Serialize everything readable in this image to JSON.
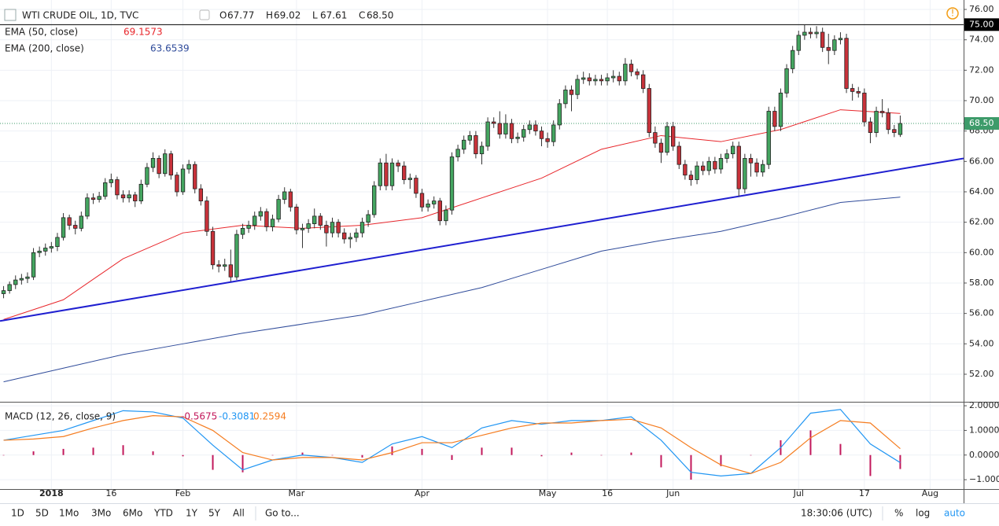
{
  "chart_data": {
    "type": "candlestick",
    "title": "WTI CRUDE OIL, 1D, TVC",
    "ohlc_legend": [
      {
        "key": "O",
        "value": "67.77"
      },
      {
        "key": "H",
        "value": "69.02"
      },
      {
        "key": "L",
        "value": "67.61"
      },
      {
        "key": "C",
        "value": "68.50"
      }
    ],
    "up_color": "#44a560",
    "down_color": "#c8323a",
    "candles": [
      [
        57.3,
        57.8,
        57.0,
        57.5
      ],
      [
        57.5,
        58.1,
        57.3,
        57.9
      ],
      [
        57.9,
        58.5,
        57.6,
        58.2
      ],
      [
        58.2,
        58.6,
        57.9,
        58.3
      ],
      [
        58.3,
        58.7,
        58.0,
        58.4
      ],
      [
        58.4,
        60.3,
        58.2,
        60.0
      ],
      [
        60.0,
        60.4,
        59.7,
        60.1
      ],
      [
        60.1,
        60.6,
        59.8,
        60.3
      ],
      [
        60.3,
        60.7,
        60.0,
        60.4
      ],
      [
        60.4,
        61.3,
        60.1,
        61.0
      ],
      [
        61.0,
        62.6,
        60.8,
        62.3
      ],
      [
        62.3,
        62.5,
        61.5,
        61.8
      ],
      [
        61.8,
        62.1,
        61.2,
        61.6
      ],
      [
        61.6,
        62.7,
        61.4,
        62.4
      ],
      [
        62.4,
        63.9,
        62.2,
        63.6
      ],
      [
        63.6,
        63.9,
        63.2,
        63.5
      ],
      [
        63.5,
        64.0,
        63.3,
        63.7
      ],
      [
        63.7,
        64.9,
        63.5,
        64.6
      ],
      [
        64.6,
        65.2,
        64.3,
        64.8
      ],
      [
        64.8,
        65.0,
        63.5,
        63.8
      ],
      [
        63.8,
        64.1,
        63.3,
        63.6
      ],
      [
        63.6,
        64.1,
        63.3,
        63.8
      ],
      [
        63.8,
        64.0,
        63.0,
        63.4
      ],
      [
        63.4,
        64.8,
        63.2,
        64.5
      ],
      [
        64.5,
        65.9,
        64.3,
        65.6
      ],
      [
        65.6,
        66.6,
        65.3,
        66.2
      ],
      [
        66.2,
        66.4,
        64.9,
        65.2
      ],
      [
        65.2,
        66.8,
        65.0,
        66.5
      ],
      [
        66.5,
        66.7,
        64.8,
        65.1
      ],
      [
        65.1,
        65.3,
        63.7,
        64.0
      ],
      [
        64.0,
        65.8,
        63.8,
        65.5
      ],
      [
        65.5,
        66.1,
        65.2,
        65.8
      ],
      [
        65.8,
        66.0,
        63.9,
        64.2
      ],
      [
        64.2,
        64.5,
        63.1,
        63.4
      ],
      [
        63.4,
        63.7,
        61.1,
        61.4
      ],
      [
        61.4,
        61.7,
        58.9,
        59.2
      ],
      [
        59.2,
        59.5,
        58.7,
        59.1
      ],
      [
        59.1,
        59.6,
        58.8,
        59.2
      ],
      [
        59.2,
        60.2,
        58.1,
        58.4
      ],
      [
        58.4,
        61.5,
        58.2,
        61.2
      ],
      [
        61.2,
        61.9,
        60.9,
        61.6
      ],
      [
        61.6,
        62.1,
        61.3,
        61.8
      ],
      [
        61.8,
        62.7,
        61.5,
        62.4
      ],
      [
        62.4,
        63.0,
        62.1,
        62.7
      ],
      [
        62.7,
        62.9,
        61.4,
        61.7
      ],
      [
        61.7,
        62.5,
        61.4,
        62.2
      ],
      [
        62.2,
        63.8,
        62.0,
        63.5
      ],
      [
        63.5,
        64.3,
        63.2,
        64.0
      ],
      [
        64.0,
        64.2,
        62.7,
        63.0
      ],
      [
        63.0,
        63.2,
        61.2,
        61.5
      ],
      [
        61.5,
        61.9,
        60.3,
        61.6
      ],
      [
        61.6,
        62.2,
        61.3,
        61.9
      ],
      [
        61.9,
        62.9,
        61.6,
        62.4
      ],
      [
        62.4,
        62.6,
        61.5,
        61.8
      ],
      [
        61.8,
        62.1,
        60.4,
        61.3
      ],
      [
        61.3,
        62.3,
        61.0,
        62.0
      ],
      [
        62.0,
        62.2,
        61.0,
        61.3
      ],
      [
        61.3,
        61.6,
        60.6,
        60.9
      ],
      [
        60.9,
        61.3,
        60.3,
        61.0
      ],
      [
        61.0,
        61.6,
        60.7,
        61.3
      ],
      [
        61.3,
        62.3,
        61.0,
        62.0
      ],
      [
        62.0,
        62.8,
        61.7,
        62.5
      ],
      [
        62.5,
        64.7,
        62.3,
        64.4
      ],
      [
        64.4,
        66.2,
        64.1,
        65.9
      ],
      [
        65.9,
        66.5,
        64.1,
        64.4
      ],
      [
        64.4,
        66.2,
        64.1,
        65.9
      ],
      [
        65.9,
        66.1,
        65.3,
        65.7
      ],
      [
        65.7,
        66.0,
        64.5,
        64.8
      ],
      [
        64.8,
        65.2,
        64.2,
        64.9
      ],
      [
        64.9,
        65.1,
        63.6,
        63.9
      ],
      [
        63.9,
        64.2,
        62.7,
        63.0
      ],
      [
        63.0,
        63.5,
        62.7,
        63.2
      ],
      [
        63.2,
        63.7,
        62.9,
        63.4
      ],
      [
        63.4,
        63.6,
        61.8,
        62.1
      ],
      [
        62.1,
        63.1,
        61.8,
        62.8
      ],
      [
        62.8,
        66.6,
        62.5,
        66.3
      ],
      [
        66.3,
        67.1,
        66.0,
        66.8
      ],
      [
        66.8,
        67.7,
        66.5,
        67.4
      ],
      [
        67.4,
        68.0,
        67.1,
        67.7
      ],
      [
        67.7,
        68.0,
        66.2,
        66.5
      ],
      [
        66.5,
        67.3,
        65.8,
        67.0
      ],
      [
        67.0,
        68.9,
        66.7,
        68.6
      ],
      [
        68.6,
        68.9,
        68.2,
        68.5
      ],
      [
        68.5,
        69.3,
        67.5,
        67.8
      ],
      [
        67.8,
        69.1,
        67.5,
        68.5
      ],
      [
        68.5,
        68.8,
        67.2,
        67.5
      ],
      [
        67.5,
        67.9,
        67.2,
        67.6
      ],
      [
        67.6,
        68.4,
        67.3,
        68.1
      ],
      [
        68.1,
        68.7,
        67.8,
        68.4
      ],
      [
        68.4,
        68.7,
        67.7,
        68.0
      ],
      [
        68.0,
        68.3,
        67.0,
        67.5
      ],
      [
        67.5,
        67.9,
        66.9,
        67.3
      ],
      [
        67.3,
        68.7,
        67.0,
        68.4
      ],
      [
        68.4,
        70.1,
        68.1,
        69.8
      ],
      [
        69.8,
        71.0,
        69.5,
        70.7
      ],
      [
        70.7,
        71.0,
        69.3,
        70.4
      ],
      [
        70.4,
        71.7,
        70.1,
        71.4
      ],
      [
        71.4,
        71.9,
        71.1,
        71.5
      ],
      [
        71.5,
        71.8,
        71.0,
        71.3
      ],
      [
        71.3,
        71.7,
        71.0,
        71.4
      ],
      [
        71.4,
        71.7,
        71.0,
        71.3
      ],
      [
        71.3,
        71.8,
        71.0,
        71.5
      ],
      [
        71.5,
        72.0,
        71.2,
        71.6
      ],
      [
        71.6,
        71.9,
        71.0,
        71.3
      ],
      [
        71.3,
        72.8,
        71.0,
        72.4
      ],
      [
        72.4,
        72.7,
        71.6,
        71.9
      ],
      [
        71.9,
        72.1,
        71.4,
        71.7
      ],
      [
        71.7,
        72.0,
        70.5,
        70.8
      ],
      [
        70.8,
        71.1,
        67.6,
        67.9
      ],
      [
        67.9,
        68.3,
        66.9,
        67.2
      ],
      [
        67.2,
        67.5,
        65.9,
        66.6
      ],
      [
        66.6,
        68.6,
        66.4,
        68.3
      ],
      [
        68.3,
        68.6,
        66.7,
        67.0
      ],
      [
        67.0,
        67.3,
        65.5,
        65.8
      ],
      [
        65.8,
        66.1,
        64.8,
        65.1
      ],
      [
        65.1,
        65.4,
        64.4,
        64.8
      ],
      [
        64.8,
        66.0,
        64.5,
        65.7
      ],
      [
        65.7,
        66.0,
        65.1,
        65.4
      ],
      [
        65.4,
        66.3,
        65.1,
        66.0
      ],
      [
        66.0,
        66.3,
        65.2,
        65.5
      ],
      [
        65.5,
        66.5,
        65.2,
        66.2
      ],
      [
        66.2,
        66.8,
        65.9,
        66.5
      ],
      [
        66.5,
        67.3,
        66.2,
        67.0
      ],
      [
        67.0,
        67.3,
        63.7,
        64.2
      ],
      [
        64.2,
        66.5,
        63.9,
        66.2
      ],
      [
        66.2,
        66.5,
        65.0,
        65.9
      ],
      [
        65.9,
        66.2,
        65.0,
        65.3
      ],
      [
        65.3,
        66.1,
        65.0,
        65.8
      ],
      [
        65.8,
        69.6,
        65.5,
        69.3
      ],
      [
        69.3,
        69.6,
        68.0,
        68.3
      ],
      [
        68.3,
        70.8,
        68.0,
        70.5
      ],
      [
        70.5,
        72.4,
        70.2,
        72.1
      ],
      [
        72.1,
        73.6,
        71.8,
        73.3
      ],
      [
        73.3,
        74.6,
        73.0,
        74.3
      ],
      [
        74.3,
        75.0,
        74.0,
        74.5
      ],
      [
        74.5,
        74.8,
        74.1,
        74.4
      ],
      [
        74.4,
        74.9,
        74.1,
        74.5
      ],
      [
        74.5,
        74.8,
        73.2,
        73.5
      ],
      [
        73.5,
        74.4,
        72.4,
        73.3
      ],
      [
        73.3,
        74.3,
        73.0,
        74.0
      ],
      [
        74.0,
        74.5,
        73.7,
        74.1
      ],
      [
        74.1,
        74.4,
        70.5,
        70.8
      ],
      [
        70.8,
        71.1,
        70.0,
        70.6
      ],
      [
        70.6,
        70.9,
        70.2,
        70.5
      ],
      [
        70.5,
        70.8,
        68.3,
        68.6
      ],
      [
        68.6,
        68.9,
        67.2,
        67.9
      ],
      [
        67.9,
        69.6,
        67.6,
        69.3
      ],
      [
        69.3,
        70.1,
        68.9,
        69.2
      ],
      [
        69.2,
        69.5,
        67.8,
        68.1
      ],
      [
        68.1,
        68.4,
        67.6,
        67.9
      ],
      [
        67.77,
        69.02,
        67.61,
        68.5
      ]
    ],
    "xlim": [
      -0.6,
      160.6
    ],
    "xticks": [
      {
        "value": 8,
        "label": "2018"
      },
      {
        "value": 18,
        "label": "16"
      },
      {
        "value": 30,
        "label": "Feb"
      },
      {
        "value": 49,
        "label": "Mar"
      },
      {
        "value": 70,
        "label": "Apr"
      },
      {
        "value": 91,
        "label": "May"
      },
      {
        "value": 101,
        "label": "16"
      },
      {
        "value": 112,
        "label": "Jun"
      },
      {
        "value": 133,
        "label": "Jul"
      },
      {
        "value": 144,
        "label": "17"
      },
      {
        "value": 155,
        "label": "Aug"
      }
    ],
    "ylim": [
      50.24,
      76.62
    ],
    "yticks": [
      {
        "value": 52,
        "label": "52.00"
      },
      {
        "value": 54,
        "label": "54.00"
      },
      {
        "value": 56,
        "label": "56.00"
      },
      {
        "value": 58,
        "label": "58.00"
      },
      {
        "value": 60,
        "label": "60.00"
      },
      {
        "value": 62,
        "label": "62.00"
      },
      {
        "value": 64,
        "label": "64.00"
      },
      {
        "value": 66,
        "label": "66.00"
      },
      {
        "value": 68,
        "label": "68.00"
      },
      {
        "value": 70,
        "label": "70.00"
      },
      {
        "value": 72,
        "label": "72.00"
      },
      {
        "value": 74,
        "label": "74.00"
      },
      {
        "value": 76,
        "label": "76.00"
      }
    ],
    "grid": true,
    "price_lines": [
      {
        "value": 75,
        "label": "75.00",
        "color": "#000000",
        "style": "solid"
      },
      {
        "value": 68.5,
        "label": "68.50",
        "color": "#3d9b6a",
        "style": "dotted"
      }
    ],
    "ema": [
      {
        "name": "EMA (50, close)",
        "value_label": "69.1573",
        "color": "#e8262b",
        "x": [
          0,
          10,
          20,
          30,
          40,
          50,
          60,
          70,
          80,
          90,
          100,
          110,
          120,
          130,
          140,
          150
        ],
        "values": [
          55.6,
          56.9,
          59.6,
          61.3,
          61.8,
          61.6,
          61.8,
          62.3,
          63.6,
          64.9,
          66.8,
          67.7,
          67.3,
          68.1,
          69.4,
          69.1573
        ]
      },
      {
        "name": "EMA (200, close)",
        "value_label": "63.6539",
        "color": "#2f4b9a",
        "x": [
          0,
          10,
          20,
          30,
          40,
          50,
          60,
          70,
          80,
          90,
          100,
          110,
          120,
          130,
          140,
          150
        ],
        "values": [
          51.5,
          52.4,
          53.3,
          54.0,
          54.7,
          55.3,
          55.9,
          56.8,
          57.7,
          58.9,
          60.1,
          60.8,
          61.4,
          62.3,
          63.3,
          63.6539
        ]
      }
    ],
    "trendline": {
      "x": [
        -0.6,
        160.6
      ],
      "values": [
        55.5,
        66.2
      ],
      "color": "#1f1fd0"
    },
    "macd": {
      "title": "MACD (12, 26, close, 9)",
      "ylim": [
        -1.38,
        2.13
      ],
      "yticks": [
        {
          "value": 2,
          "label": "2.0000"
        },
        {
          "value": 1,
          "label": "1.0000"
        },
        {
          "value": 0,
          "label": "0.0000"
        },
        {
          "value": -1,
          "label": "−1.0000"
        }
      ],
      "x": [
        0,
        5,
        10,
        15,
        20,
        25,
        30,
        35,
        40,
        45,
        50,
        55,
        60,
        65,
        70,
        75,
        80,
        85,
        90,
        95,
        100,
        105,
        110,
        115,
        120,
        125,
        130,
        135,
        140,
        145,
        150
      ],
      "histogram": {
        "value_label": "-0.5675",
        "color": "#c2185b",
        "values": [
          0.0,
          0.15,
          0.25,
          0.3,
          0.4,
          0.15,
          -0.05,
          -0.6,
          -0.7,
          0.0,
          0.1,
          0.0,
          -0.1,
          0.35,
          0.25,
          -0.2,
          0.3,
          0.3,
          -0.05,
          0.1,
          0.0,
          0.1,
          -0.5,
          -1.0,
          -0.45,
          0.0,
          0.6,
          1.0,
          0.45,
          -0.85,
          -0.5675
        ]
      },
      "lines": [
        {
          "value_label": "-0.3081",
          "color": "#2196f3",
          "values": [
            0.6,
            0.8,
            1.0,
            1.4,
            1.8,
            1.75,
            1.5,
            0.4,
            -0.6,
            -0.2,
            0.0,
            -0.1,
            -0.3,
            0.45,
            0.75,
            0.3,
            1.1,
            1.4,
            1.25,
            1.4,
            1.4,
            1.55,
            0.6,
            -0.7,
            -0.85,
            -0.75,
            0.3,
            1.7,
            1.85,
            0.45,
            -0.3081
          ]
        },
        {
          "value_label": "0.2594",
          "color": "#f57c1f",
          "values": [
            0.6,
            0.65,
            0.75,
            1.1,
            1.4,
            1.6,
            1.55,
            1.0,
            0.1,
            -0.2,
            -0.1,
            -0.1,
            -0.2,
            0.1,
            0.5,
            0.5,
            0.8,
            1.1,
            1.3,
            1.3,
            1.4,
            1.45,
            1.1,
            0.3,
            -0.4,
            -0.75,
            -0.3,
            0.7,
            1.4,
            1.3,
            0.2594
          ]
        }
      ]
    }
  },
  "toolbar": {
    "ranges": [
      "1D",
      "5D",
      "1Mo",
      "3Mo",
      "6Mo",
      "YTD",
      "1Y",
      "5Y",
      "All"
    ],
    "goto": "Go to...",
    "time": "18:30:06 (UTC)",
    "options": [
      "%",
      "log",
      "auto"
    ]
  }
}
